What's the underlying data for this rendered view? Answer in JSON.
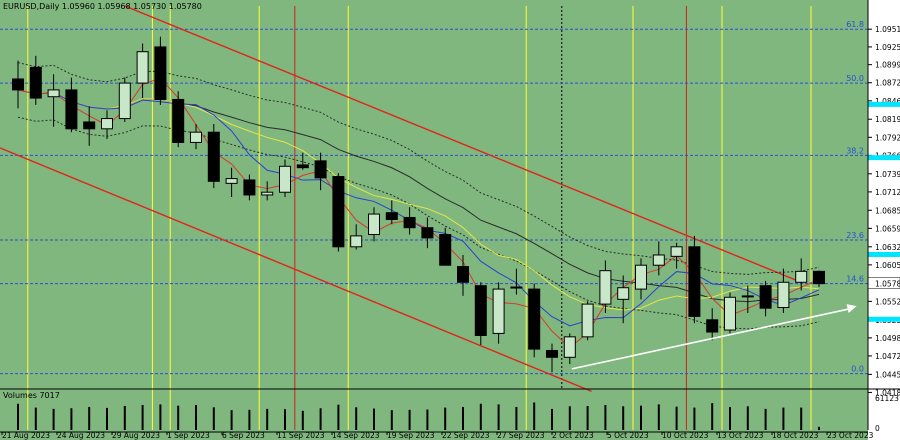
{
  "header": "EURUSD,Daily  1.05960 1.05968 1.05730 1.05780",
  "volume_label": "Volumes 7017",
  "colors": {
    "background": "#7fb77f",
    "price_axis_bg": "#ffffff",
    "bull_body": "#c8e6c8",
    "bear_body": "#000000",
    "channel": "#e0241a",
    "yellow_line": "#ffff33",
    "red_vline": "#d61e1e",
    "fib_line": "#2a4fd6",
    "cyan_marker": "#00e5ff",
    "arrow": "#ffffff"
  },
  "chart_data": {
    "type": "candlestick",
    "symbol": "EURUSD",
    "timeframe": "Daily",
    "ohlc_last": {
      "open": 1.0596,
      "high": 1.05968,
      "low": 1.0573,
      "close": 1.0578
    },
    "ylim": [
      1.0425,
      1.0985
    ],
    "y_ticks": [
      "1.09510",
      "1.09250",
      "1.08990",
      "1.08725",
      "1.08460",
      "1.08190",
      "1.07925",
      "1.07660",
      "1.07390",
      "1.07125",
      "1.06855",
      "1.06590",
      "1.06320",
      "1.06055",
      "1.05780",
      "1.05520",
      "1.05250",
      "1.04985",
      "1.04720",
      "1.04450",
      "1.04185"
    ],
    "x_labels": [
      "21 Aug 2023",
      "24 Aug 2023",
      "29 Aug 2023",
      "1 Sep 2023",
      "6 Sep 2023",
      "11 Sep 2023",
      "14 Sep 2023",
      "19 Sep 2023",
      "22 Sep 2023",
      "27 Sep 2023",
      "2 Oct 2023",
      "5 Oct 2023",
      "10 Oct 2023",
      "13 Oct 2023",
      "18 Oct 2023",
      "23 Oct 2023"
    ],
    "current_price": "1.05780",
    "volume_ticks": [
      "61123",
      "0"
    ],
    "fib_levels": [
      {
        "label": "61.8",
        "price": 1.0951
      },
      {
        "label": "50.0",
        "price": 1.0872
      },
      {
        "label": "38.2",
        "price": 1.0766
      },
      {
        "label": "23.6",
        "price": 1.0642
      },
      {
        "label": "14.6",
        "price": 1.0578
      },
      {
        "label": "0.0",
        "price": 1.0446
      }
    ],
    "candles": [
      {
        "o": 1.0878,
        "h": 1.0905,
        "l": 1.0835,
        "c": 1.0862
      },
      {
        "o": 1.0895,
        "h": 1.0912,
        "l": 1.084,
        "c": 1.085
      },
      {
        "o": 1.0852,
        "h": 1.0885,
        "l": 1.0808,
        "c": 1.0862
      },
      {
        "o": 1.0862,
        "h": 1.088,
        "l": 1.08,
        "c": 1.0805
      },
      {
        "o": 1.0815,
        "h": 1.0838,
        "l": 1.078,
        "c": 1.0805
      },
      {
        "o": 1.0805,
        "h": 1.0832,
        "l": 1.079,
        "c": 1.082
      },
      {
        "o": 1.082,
        "h": 1.088,
        "l": 1.0815,
        "c": 1.0872
      },
      {
        "o": 1.0872,
        "h": 1.093,
        "l": 1.085,
        "c": 1.0918
      },
      {
        "o": 1.0925,
        "h": 1.094,
        "l": 1.084,
        "c": 1.0848
      },
      {
        "o": 1.0848,
        "h": 1.086,
        "l": 1.0778,
        "c": 1.0785
      },
      {
        "o": 1.0785,
        "h": 1.0812,
        "l": 1.0775,
        "c": 1.08
      },
      {
        "o": 1.08,
        "h": 1.0812,
        "l": 1.0718,
        "c": 1.0728
      },
      {
        "o": 1.0725,
        "h": 1.0748,
        "l": 1.0705,
        "c": 1.0732
      },
      {
        "o": 1.073,
        "h": 1.0738,
        "l": 1.07,
        "c": 1.0708
      },
      {
        "o": 1.0708,
        "h": 1.0728,
        "l": 1.07,
        "c": 1.0712
      },
      {
        "o": 1.0712,
        "h": 1.076,
        "l": 1.0705,
        "c": 1.075
      },
      {
        "o": 1.0752,
        "h": 1.077,
        "l": 1.0745,
        "c": 1.0748
      },
      {
        "o": 1.0758,
        "h": 1.077,
        "l": 1.0715,
        "c": 1.0733
      },
      {
        "o": 1.0735,
        "h": 1.074,
        "l": 1.0625,
        "c": 1.0632
      },
      {
        "o": 1.0632,
        "h": 1.0665,
        "l": 1.0628,
        "c": 1.0648
      },
      {
        "o": 1.065,
        "h": 1.069,
        "l": 1.064,
        "c": 1.068
      },
      {
        "o": 1.0682,
        "h": 1.07,
        "l": 1.0665,
        "c": 1.0672
      },
      {
        "o": 1.0675,
        "h": 1.069,
        "l": 1.065,
        "c": 1.066
      },
      {
        "o": 1.066,
        "h": 1.0675,
        "l": 1.063,
        "c": 1.0645
      },
      {
        "o": 1.065,
        "h": 1.066,
        "l": 1.0605,
        "c": 1.0605
      },
      {
        "o": 1.0603,
        "h": 1.062,
        "l": 1.056,
        "c": 1.058
      },
      {
        "o": 1.0575,
        "h": 1.058,
        "l": 1.0488,
        "c": 1.0502
      },
      {
        "o": 1.0505,
        "h": 1.058,
        "l": 1.049,
        "c": 1.057
      },
      {
        "o": 1.0572,
        "h": 1.06,
        "l": 1.0562,
        "c": 1.0573
      },
      {
        "o": 1.057,
        "h": 1.0578,
        "l": 1.047,
        "c": 1.0482
      },
      {
        "o": 1.048,
        "h": 1.049,
        "l": 1.0448,
        "c": 1.047
      },
      {
        "o": 1.047,
        "h": 1.0505,
        "l": 1.046,
        "c": 1.05
      },
      {
        "o": 1.05,
        "h": 1.0552,
        "l": 1.0495,
        "c": 1.0548
      },
      {
        "o": 1.0548,
        "h": 1.0612,
        "l": 1.0535,
        "c": 1.0597
      },
      {
        "o": 1.0555,
        "h": 1.059,
        "l": 1.052,
        "c": 1.0572
      },
      {
        "o": 1.057,
        "h": 1.0615,
        "l": 1.0555,
        "c": 1.0605
      },
      {
        "o": 1.0605,
        "h": 1.064,
        "l": 1.059,
        "c": 1.062
      },
      {
        "o": 1.0618,
        "h": 1.0638,
        "l": 1.06,
        "c": 1.0632
      },
      {
        "o": 1.0632,
        "h": 1.0648,
        "l": 1.052,
        "c": 1.053
      },
      {
        "o": 1.0525,
        "h": 1.0542,
        "l": 1.0495,
        "c": 1.0507
      },
      {
        "o": 1.051,
        "h": 1.0565,
        "l": 1.0505,
        "c": 1.0558
      },
      {
        "o": 1.056,
        "h": 1.0575,
        "l": 1.0535,
        "c": 1.056
      },
      {
        "o": 1.0575,
        "h": 1.0582,
        "l": 1.053,
        "c": 1.0542
      },
      {
        "o": 1.0543,
        "h": 1.06,
        "l": 1.0535,
        "c": 1.058
      },
      {
        "o": 1.058,
        "h": 1.0615,
        "l": 1.0568,
        "c": 1.0596
      },
      {
        "o": 1.0596,
        "h": 1.0597,
        "l": 1.0573,
        "c": 1.0578
      }
    ],
    "volumes": [
      0.82,
      0.7,
      0.66,
      0.68,
      0.72,
      0.69,
      0.75,
      0.78,
      0.8,
      0.76,
      0.78,
      0.71,
      0.62,
      0.63,
      0.66,
      0.65,
      0.6,
      0.68,
      0.79,
      0.71,
      0.67,
      0.62,
      0.63,
      0.64,
      0.7,
      0.72,
      0.82,
      0.8,
      0.72,
      0.86,
      0.66,
      0.74,
      0.75,
      0.78,
      0.74,
      0.76,
      0.8,
      0.73,
      0.7,
      0.84,
      0.72,
      0.74,
      0.66,
      0.7,
      0.7,
      0.1
    ]
  }
}
